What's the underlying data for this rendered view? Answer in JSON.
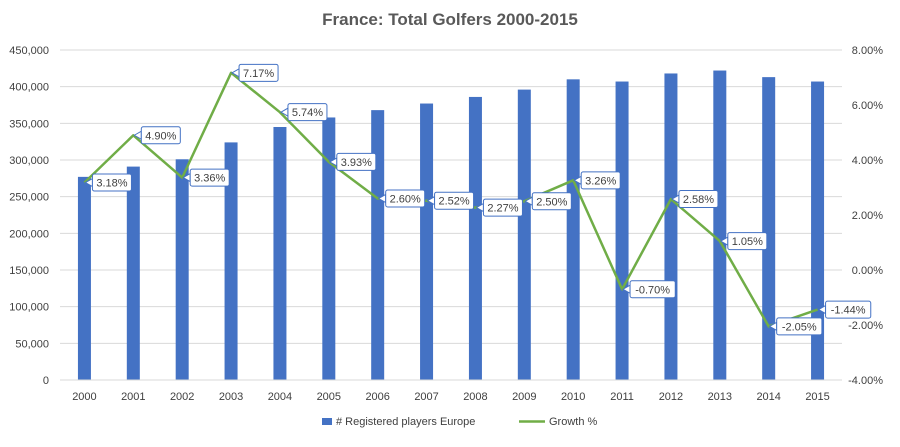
{
  "chart_data": {
    "type": "bar",
    "title": "France: Total Golfers 2000-2015",
    "categories": [
      "2000",
      "2001",
      "2002",
      "2003",
      "2004",
      "2005",
      "2006",
      "2007",
      "2008",
      "2009",
      "2010",
      "2011",
      "2012",
      "2013",
      "2014",
      "2015"
    ],
    "series": [
      {
        "name": "# Registered players Europe",
        "type": "bar",
        "axis": "left",
        "color": "#4472C4",
        "values": [
          277000,
          291000,
          301000,
          324000,
          345000,
          358000,
          368000,
          377000,
          386000,
          396000,
          410000,
          407000,
          418000,
          422000,
          413000,
          407000
        ]
      },
      {
        "name": "Growth %",
        "type": "line",
        "axis": "right",
        "color": "#70AD47",
        "values": [
          3.18,
          4.9,
          3.36,
          7.17,
          5.74,
          3.93,
          2.6,
          2.52,
          2.27,
          2.5,
          3.26,
          -0.7,
          2.58,
          1.05,
          -2.05,
          -1.44
        ],
        "labels": [
          "3.18%",
          "4.90%",
          "3.36%",
          "7.17%",
          "5.74%",
          "3.93%",
          "2.60%",
          "2.52%",
          "2.27%",
          "2.50%",
          "3.26%",
          "-0.70%",
          "2.58%",
          "1.05%",
          "-2.05%",
          "-1.44%"
        ]
      }
    ],
    "y_left": {
      "min": 0,
      "max": 450000,
      "ticks": [
        0,
        50000,
        100000,
        150000,
        200000,
        250000,
        300000,
        350000,
        400000,
        450000
      ],
      "tick_labels": [
        "0",
        "50,000",
        "100,000",
        "150,000",
        "200,000",
        "250,000",
        "300,000",
        "350,000",
        "400,000",
        "450,000"
      ]
    },
    "y_right": {
      "min": -4,
      "max": 8,
      "ticks": [
        -4,
        -2,
        0,
        2,
        4,
        6,
        8
      ],
      "tick_labels": [
        "-4.00%",
        "-2.00%",
        "0.00%",
        "2.00%",
        "4.00%",
        "6.00%",
        "8.00%"
      ]
    },
    "grid": true,
    "legend_position": "bottom"
  }
}
